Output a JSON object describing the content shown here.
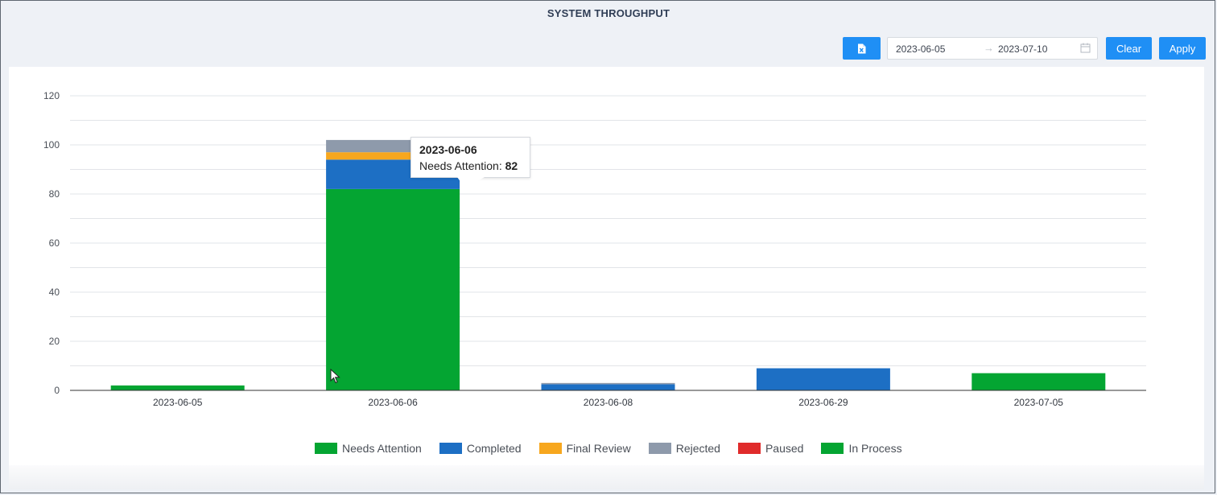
{
  "page": {
    "title": "SYSTEM THROUGHPUT"
  },
  "toolbar": {
    "export_icon": "excel-export-icon",
    "date_start": "2023-06-05",
    "date_separator": "→",
    "date_end": "2023-07-10",
    "calendar_icon": "calendar-icon",
    "clear_label": "Clear",
    "apply_label": "Apply"
  },
  "colors": {
    "accent": "#1f8ff5",
    "needs_attention": "#04a532",
    "completed": "#1d6fc4",
    "final_review": "#f7a71e",
    "rejected": "#8e9aab",
    "paused": "#e02b2b",
    "in_process": "#04a532"
  },
  "chart_data": {
    "type": "bar",
    "stacked": true,
    "categories": [
      "2023-06-05",
      "2023-06-06",
      "2023-06-08",
      "2023-06-29",
      "2023-07-05"
    ],
    "ylim": [
      0,
      120
    ],
    "yticks": [
      0,
      20,
      40,
      60,
      80,
      100,
      120
    ],
    "grid": true,
    "legend_position": "bottom",
    "series": [
      {
        "name": "Needs Attention",
        "color": "#04a532",
        "values": [
          2,
          82,
          0,
          0,
          7
        ]
      },
      {
        "name": "Completed",
        "color": "#1d6fc4",
        "values": [
          0,
          12,
          2.5,
          9,
          0
        ]
      },
      {
        "name": "Final Review",
        "color": "#f7a71e",
        "values": [
          0,
          3,
          0,
          0,
          0
        ]
      },
      {
        "name": "Rejected",
        "color": "#8e9aab",
        "values": [
          0,
          5,
          0.5,
          0,
          0
        ]
      },
      {
        "name": "Paused",
        "color": "#e02b2b",
        "values": [
          0,
          0,
          0,
          0,
          0
        ]
      },
      {
        "name": "In Process",
        "color": "#04a532",
        "values": [
          0,
          0,
          0,
          0,
          0
        ]
      }
    ],
    "tooltip": {
      "title": "2023-06-06",
      "label": "Needs Attention:",
      "value": "82"
    }
  }
}
